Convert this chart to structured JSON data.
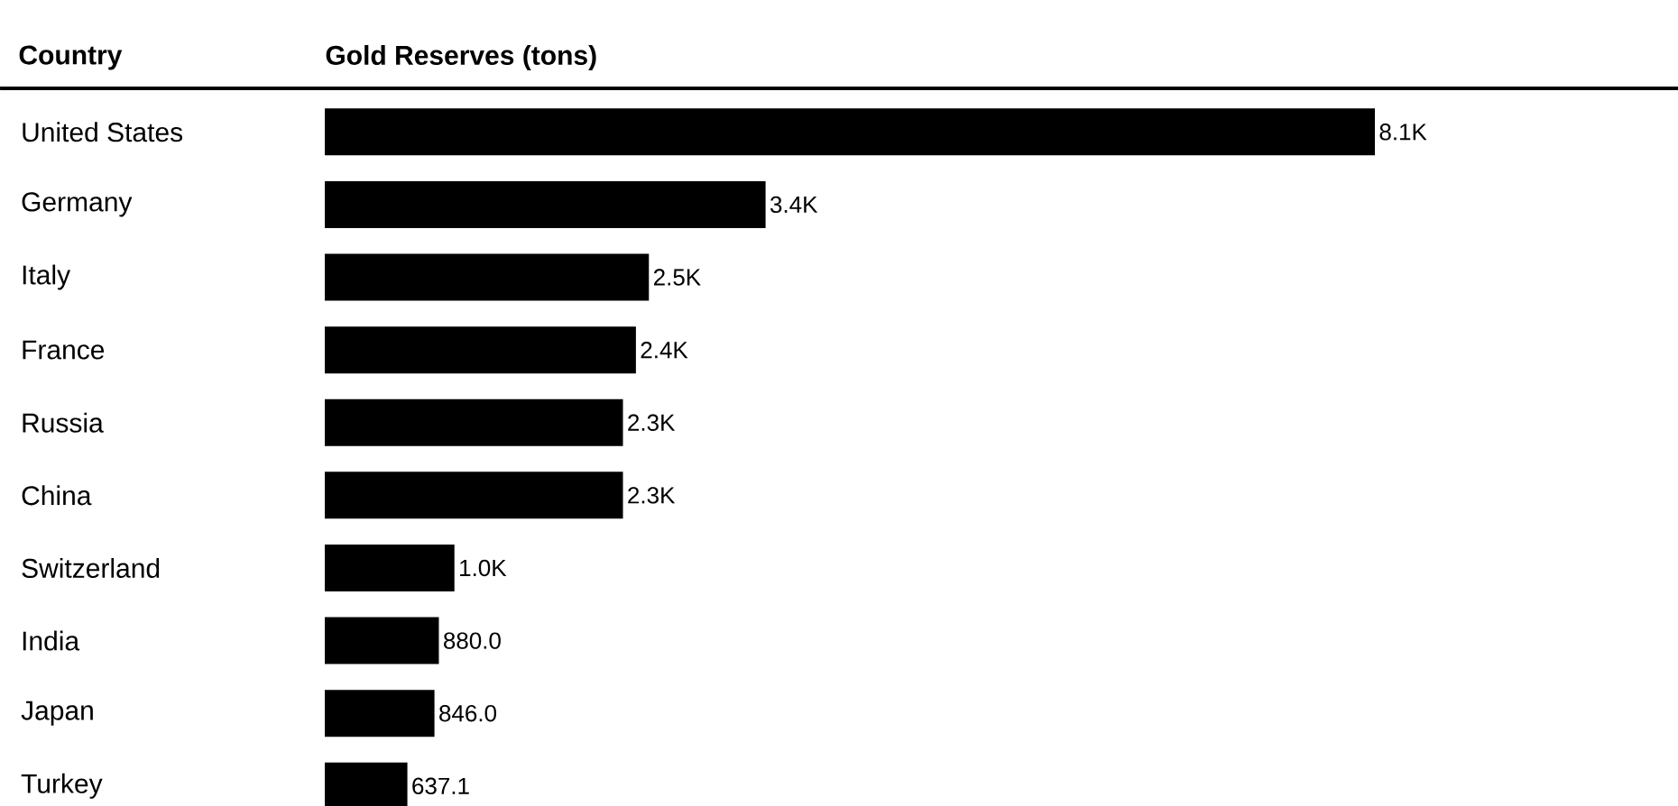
{
  "chart_data": {
    "type": "bar",
    "orientation": "horizontal",
    "xlabel": "Gold Reserves (tons)",
    "annotations": [
      "Country"
    ],
    "categories": [
      "United States",
      "Germany",
      "Italy",
      "France",
      "Russia",
      "China",
      "Switzerland",
      "India",
      "Japan",
      "Turkey"
    ],
    "values": [
      8100,
      3400,
      2500,
      2400,
      2300,
      2300,
      1000,
      880.0,
      846.0,
      637.1
    ],
    "value_labels": [
      "8.1K",
      "3.4K",
      "2.5K",
      "2.4K",
      "2.3K",
      "2.3K",
      "1.0K",
      "880.0",
      "846.0",
      "637.1"
    ],
    "color": "#000000"
  }
}
